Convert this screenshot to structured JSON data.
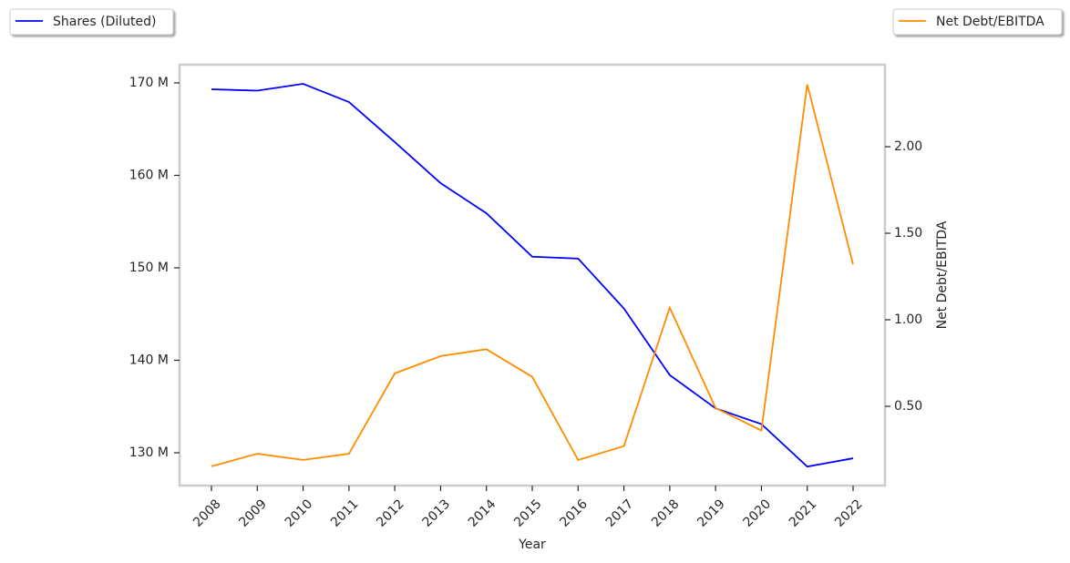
{
  "chart_data": {
    "type": "line",
    "x_label": "Year",
    "y2_label": "Net Debt/EBITDA",
    "categories": [
      "2008",
      "2009",
      "2010",
      "2011",
      "2012",
      "2013",
      "2014",
      "2015",
      "2016",
      "2017",
      "2018",
      "2019",
      "2020",
      "2021",
      "2022"
    ],
    "series": [
      {
        "name": "Shares (Diluted)",
        "color": "#0000ff",
        "axis": "y",
        "values": [
          169310000,
          169160000,
          169900000,
          167930000,
          163600000,
          159160000,
          155900000,
          151200000,
          151000000,
          145600000,
          138400000,
          134800000,
          133100000,
          128500000,
          129400000
        ]
      },
      {
        "name": "Net Debt/EBITDA",
        "color": "#ff8c00",
        "axis": "y2",
        "values": [
          0.153,
          0.226,
          0.19,
          0.226,
          0.69,
          0.79,
          0.83,
          0.67,
          0.19,
          0.27,
          1.07,
          0.49,
          0.36,
          2.36,
          1.32
        ]
      }
    ],
    "ylim": [
      126450000,
      171970000
    ],
    "yticks": [
      {
        "value": 130000000,
        "label": "130 M"
      },
      {
        "value": 140000000,
        "label": "140 M"
      },
      {
        "value": 150000000,
        "label": "150 M"
      },
      {
        "value": 160000000,
        "label": "160 M"
      },
      {
        "value": 170000000,
        "label": "170 M"
      }
    ],
    "y2lim": [
      0.042,
      2.474
    ],
    "y2ticks": [
      {
        "value": 0.5,
        "label": "0.50"
      },
      {
        "value": 1.0,
        "label": "1.00"
      },
      {
        "value": 1.5,
        "label": "1.50"
      },
      {
        "value": 2.0,
        "label": "2.00"
      }
    ],
    "grid": false
  }
}
